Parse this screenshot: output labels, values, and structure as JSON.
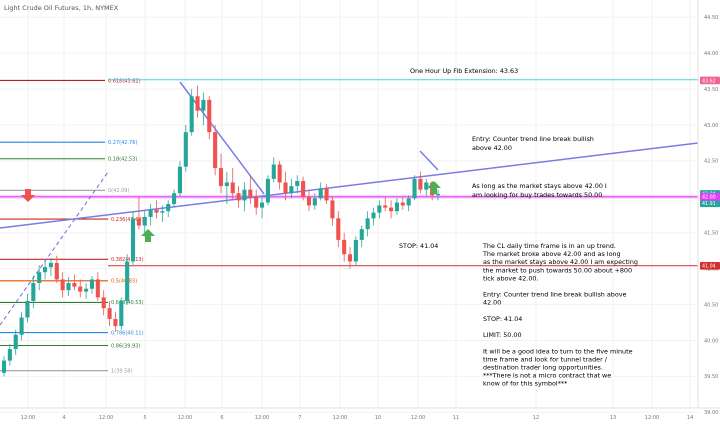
{
  "chart_data": {
    "type": "candlestick",
    "title": "Light Crude Oil Futures, 1h, NYMEX",
    "ylim": [
      39.06,
      44.74
    ],
    "y_ticks": [
      "44.50",
      "44.00",
      "43.50",
      "43.00",
      "42.50",
      "42.00",
      "41.50",
      "41.00",
      "40.50",
      "40.00",
      "39.50",
      "39.00"
    ],
    "x_ticks": [
      "12:00",
      "4",
      "12:00",
      "5",
      "12:00",
      "6",
      "12:00",
      "7",
      "12:00",
      "10",
      "12:00",
      "11",
      "12",
      "13",
      "12:00",
      "14"
    ],
    "price_tags": [
      {
        "label": "43.62",
        "value": 43.62,
        "color": "#f06292"
      },
      {
        "label": "42.04",
        "value": 42.04,
        "color": "#26a69a"
      },
      {
        "label": "41.91",
        "value": 41.91,
        "color": "#26a69a"
      },
      {
        "label": "42.00",
        "value": 42.0,
        "color": "#e040fb"
      },
      {
        "label": "41.04",
        "value": 41.04,
        "color": "#d32f2f"
      }
    ],
    "fib_levels": [
      {
        "label": "0.618(43.62)",
        "value": 43.62,
        "color": "#b71c1c"
      },
      {
        "label": "0.27(42.76)",
        "value": 42.76,
        "color": "#1e88e5"
      },
      {
        "label": "0.18(42.53)",
        "value": 42.53,
        "color": "#2e7d32"
      },
      {
        "label": "0(42.09)",
        "value": 42.09,
        "color": "#9e9e9e"
      },
      {
        "label": "0.236(41.69)",
        "value": 41.69,
        "color": "#c62828"
      },
      {
        "label": "0.382(41.13)",
        "value": 41.13,
        "color": "#c62828"
      },
      {
        "label": "0.5(40.83)",
        "value": 40.83,
        "color": "#e65100"
      },
      {
        "label": "0.618(40.53)",
        "value": 40.53,
        "color": "#2e7d32"
      },
      {
        "label": "0.786(40.11)",
        "value": 40.11,
        "color": "#1e88e5"
      },
      {
        "label": "0.86(39.93)",
        "value": 39.93,
        "color": "#2e7d32"
      },
      {
        "label": "1(39.58)",
        "value": 39.58,
        "color": "#9e9e9e"
      }
    ],
    "lines": {
      "fib_extension": 43.63,
      "support": 42.0,
      "stop": 41.04
    },
    "candles": [
      [
        39.55,
        39.78,
        39.5,
        39.72
      ],
      [
        39.72,
        39.95,
        39.65,
        39.88
      ],
      [
        39.88,
        40.15,
        39.8,
        40.08
      ],
      [
        40.08,
        40.4,
        40.0,
        40.32
      ],
      [
        40.32,
        40.65,
        40.25,
        40.55
      ],
      [
        40.55,
        40.9,
        40.45,
        40.8
      ],
      [
        40.8,
        41.05,
        40.7,
        40.95
      ],
      [
        40.95,
        41.1,
        40.85,
        41.02
      ],
      [
        41.02,
        41.15,
        40.9,
        41.08
      ],
      [
        41.08,
        41.18,
        40.8,
        40.85
      ],
      [
        40.85,
        40.95,
        40.6,
        40.7
      ],
      [
        40.7,
        40.88,
        40.62,
        40.8
      ],
      [
        40.8,
        40.92,
        40.7,
        40.75
      ],
      [
        40.75,
        40.85,
        40.6,
        40.68
      ],
      [
        40.68,
        40.8,
        40.58,
        40.72
      ],
      [
        40.72,
        40.9,
        40.65,
        40.85
      ],
      [
        40.85,
        40.95,
        40.55,
        40.6
      ],
      [
        40.6,
        40.7,
        40.35,
        40.45
      ],
      [
        40.45,
        40.55,
        40.2,
        40.3
      ],
      [
        40.3,
        40.4,
        40.12,
        40.2
      ],
      [
        40.2,
        40.6,
        40.15,
        40.55
      ],
      [
        40.55,
        41.2,
        40.5,
        41.1
      ],
      [
        41.1,
        41.8,
        41.05,
        41.7
      ],
      [
        41.7,
        42.0,
        41.55,
        41.6
      ],
      [
        41.6,
        41.8,
        41.45,
        41.72
      ],
      [
        41.72,
        41.9,
        41.6,
        41.82
      ],
      [
        41.82,
        41.95,
        41.7,
        41.78
      ],
      [
        41.78,
        41.88,
        41.65,
        41.8
      ],
      [
        41.8,
        41.95,
        41.72,
        41.9
      ],
      [
        41.9,
        42.1,
        41.85,
        42.05
      ],
      [
        42.05,
        42.5,
        42.0,
        42.42
      ],
      [
        42.42,
        43.0,
        42.35,
        42.9
      ],
      [
        42.9,
        43.5,
        42.85,
        43.4
      ],
      [
        43.4,
        43.55,
        43.1,
        43.2
      ],
      [
        43.2,
        43.45,
        43.0,
        43.35
      ],
      [
        43.35,
        43.4,
        42.8,
        42.9
      ],
      [
        42.9,
        43.0,
        42.3,
        42.4
      ],
      [
        42.4,
        42.6,
        42.05,
        42.15
      ],
      [
        42.15,
        42.35,
        41.9,
        42.2
      ],
      [
        42.2,
        42.4,
        41.95,
        42.05
      ],
      [
        42.05,
        42.15,
        41.85,
        41.95
      ],
      [
        41.95,
        42.2,
        41.8,
        42.1
      ],
      [
        42.1,
        42.3,
        41.9,
        42.0
      ],
      [
        42.0,
        42.1,
        41.75,
        41.85
      ],
      [
        41.85,
        42.0,
        41.7,
        41.92
      ],
      [
        41.92,
        42.3,
        41.88,
        42.25
      ],
      [
        42.25,
        42.55,
        42.2,
        42.45
      ],
      [
        42.45,
        42.5,
        42.1,
        42.2
      ],
      [
        42.2,
        42.35,
        41.95,
        42.05
      ],
      [
        42.05,
        42.25,
        41.98,
        42.15
      ],
      [
        42.15,
        42.3,
        42.05,
        42.22
      ],
      [
        42.22,
        42.28,
        41.95,
        42.0
      ],
      [
        42.0,
        42.1,
        41.8,
        41.88
      ],
      [
        41.88,
        42.05,
        41.82,
        41.98
      ],
      [
        41.98,
        42.2,
        41.95,
        42.12
      ],
      [
        42.12,
        42.18,
        41.9,
        41.95
      ],
      [
        41.95,
        42.0,
        41.6,
        41.7
      ],
      [
        41.7,
        41.8,
        41.3,
        41.4
      ],
      [
        41.4,
        41.5,
        41.1,
        41.2
      ],
      [
        41.2,
        41.3,
        41.0,
        41.1
      ],
      [
        41.1,
        41.45,
        41.05,
        41.4
      ],
      [
        41.4,
        41.6,
        41.3,
        41.55
      ],
      [
        41.55,
        41.8,
        41.45,
        41.7
      ],
      [
        41.7,
        41.85,
        41.6,
        41.78
      ],
      [
        41.78,
        41.95,
        41.7,
        41.88
      ],
      [
        41.88,
        42.0,
        41.8,
        41.85
      ],
      [
        41.85,
        41.95,
        41.7,
        41.8
      ],
      [
        41.8,
        41.98,
        41.75,
        41.92
      ],
      [
        41.92,
        42.0,
        41.82,
        41.88
      ],
      [
        41.88,
        42.02,
        41.8,
        41.98
      ],
      [
        41.98,
        42.3,
        41.95,
        42.25
      ],
      [
        42.25,
        42.35,
        42.05,
        42.1
      ],
      [
        42.1,
        42.25,
        42.0,
        42.2
      ],
      [
        42.2,
        42.22,
        41.95,
        42.02
      ],
      [
        42.02,
        42.1,
        41.95,
        42.04
      ]
    ]
  },
  "notes": {
    "fib_extension": "One Hour Up Fib Extension: 43.63",
    "entry_top": [
      "Entry: Counter trend line break bullish",
      "above 42.00"
    ],
    "stay_above": [
      "As long as the market stays above 42.00 I",
      "am looking for buy trades towards 50.00"
    ],
    "stop_label": "STOP: 41.04",
    "body": [
      "The CL daily time frame is in an up trend.",
      "The market broke above 42.00 and as long",
      "as the market stays above 42.00 I am expecting",
      "the market to push towards 50.00 about +800",
      "tick above 42.00.",
      "",
      "Entry: Counter trend line break bullish above",
      "42.00",
      "",
      "STOP: 41.04",
      "",
      "LIMIT: 50.00",
      "",
      "It will be a good idea to turn to the five minute",
      "time frame and look for tunnel trader /",
      "destination trader long opportunities.",
      "***There is not a micro contract that we",
      "know of for this symbol***"
    ]
  },
  "colors": {
    "up_candle": "#26a69a",
    "down_candle": "#ef5350",
    "trendline": "#7b7be8",
    "support_line": "#e040fb",
    "fib_ext_line": "#4dd0e1",
    "stop_line": "#d32f2f",
    "arrow_down": "#ef5350",
    "arrow_up": "#4caf50"
  }
}
